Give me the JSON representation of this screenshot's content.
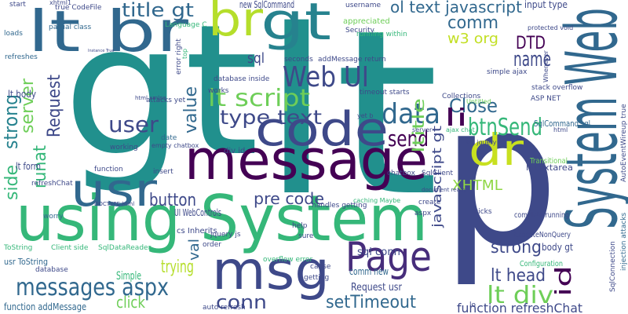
{
  "words": [
    "gt",
    "lt",
    "p",
    "System Web",
    "using System",
    "message",
    "code",
    "lt br",
    "br",
    "gt",
    "usr",
    "msg",
    "Page",
    "dr",
    "Web UI",
    "lt script",
    "type text",
    "data",
    "send",
    "btnSend",
    "name",
    "Close",
    "li",
    "comm",
    "w3 org",
    "DTD",
    "title gt",
    "ol text javascript",
    "XHTML",
    "user",
    "value",
    "strong",
    "side",
    "server",
    "runat",
    "Request",
    "ltitle",
    "javascript gt",
    "id",
    "lt head",
    "lt div",
    "strong",
    "pre code",
    "button",
    "sql",
    "trying",
    "messages aspx",
    "click",
    "conn",
    "setTimeout",
    "function refreshChat",
    "val",
    "Simple",
    "comm new",
    "sql conn",
    "Request usr",
    "UI WebControls",
    "lt form",
    "lt body",
    "usr ToString",
    "function addMessage",
    "SqlCommand sql",
    "body gt",
    "lt textarea",
    "ExecuteNonQuery",
    "complete running",
    "Configuration",
    "Transitional",
    "new SqlCommand",
    "username",
    "input type",
    "appreciated",
    "Security",
    "running within",
    "Language C",
    "partial class",
    "true CodeFile",
    "xhtml1",
    "start",
    "loads",
    "refreshes",
    "Instance True",
    "error right",
    "top",
    "attacks yet",
    "database inside",
    "seconds",
    "addMessage return",
    "simple ajax",
    "protected void",
    "stack overflow",
    "ASP NET",
    "Whenever",
    "AutoEventWireup true",
    "injection attacks",
    "SqlConnection",
    "Collections",
    "works",
    "date",
    "empty chatbox",
    "working",
    "function",
    "insert",
    "div id",
    "jquery js",
    "handles getting",
    "create",
    "kicks",
    "getting",
    "cause",
    "help",
    "sure",
    "database",
    "refreshChat",
    "worry",
    "DOCTYPE html",
    "SqlDataReader",
    "Client side",
    "cs Inherits",
    "order",
    "overflow error",
    "chatbox",
    "document ready",
    "aspx",
    "auto refresh",
    "SqlClient",
    "Untitled",
    "html",
    "server",
    "ajax chat",
    "src jquery",
    "yet b",
    "timeout starts",
    "html xmlns",
    "caching Maybe",
    "lo",
    "ToString"
  ]
}
